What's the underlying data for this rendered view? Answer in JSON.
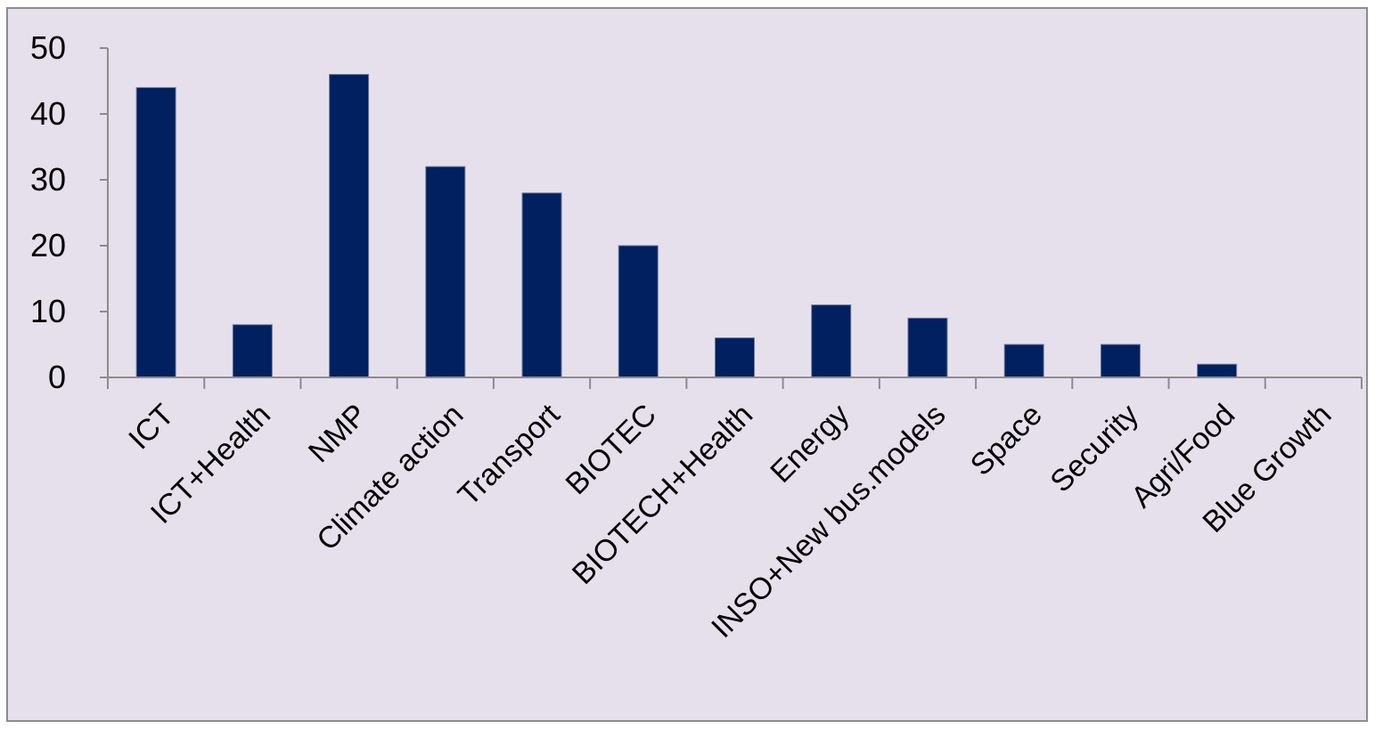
{
  "chart_data": {
    "type": "bar",
    "categories": [
      "ICT",
      "ICT+Health",
      "NMP",
      "Climate action",
      "Transport",
      "BIOTEC",
      "BIOTECH+Health",
      "Energy",
      "INSO+New bus.models",
      "Space",
      "Security",
      "Agri/Food",
      "Blue Growth"
    ],
    "values": [
      44,
      8,
      46,
      32,
      28,
      20,
      6,
      11,
      9,
      5,
      5,
      2,
      0
    ],
    "yticks": [
      "0",
      "10",
      "20",
      "30",
      "40",
      "50"
    ],
    "ylim": [
      0,
      50
    ],
    "grid": false,
    "legend": "none",
    "title": "",
    "xlabel": "",
    "ylabel": "",
    "colors": {
      "bar": "#002060",
      "background": "#e6e0ec",
      "axis": "#8c8c8c"
    }
  }
}
